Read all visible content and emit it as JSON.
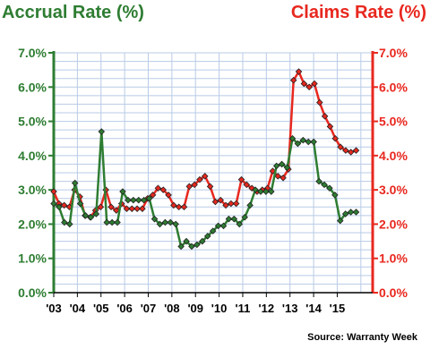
{
  "chart_data": {
    "type": "line",
    "left_axis_title": "Accrual Rate (%)",
    "right_axis_title": "Claims Rate (%)",
    "source": "Source: Warranty Week",
    "y_ticks": [
      "0.0%",
      "1.0%",
      "2.0%",
      "3.0%",
      "4.0%",
      "5.0%",
      "6.0%",
      "7.0%"
    ],
    "x_ticks": [
      "'03",
      "'04",
      "'05",
      "'06",
      "'07",
      "'08",
      "'09",
      "'10",
      "'11",
      "'12",
      "'13",
      "'14",
      "'15"
    ],
    "ylim": [
      0,
      7
    ],
    "grid": true,
    "colors": {
      "accrual": "#2e7d32",
      "claims": "#e8281f",
      "grid": "#b8cbe6"
    },
    "series": [
      {
        "axis": "left",
        "color": "#2e7d32",
        "values": [
          2.6,
          2.5,
          2.05,
          2.0,
          3.2,
          2.6,
          2.25,
          2.2,
          2.3,
          4.7,
          2.05,
          2.05,
          2.05,
          2.95,
          2.7,
          2.7,
          2.7,
          2.7,
          2.75,
          2.15,
          2.0,
          2.05,
          2.05,
          2.0,
          1.35,
          1.5,
          1.35,
          1.4,
          1.5,
          1.65,
          1.8,
          1.95,
          1.95,
          2.15,
          2.15,
          2.0,
          2.2,
          2.55,
          3.0,
          2.95,
          2.95,
          2.95,
          3.7,
          3.75,
          3.65,
          4.5,
          4.35,
          4.45,
          4.4,
          4.4,
          3.25,
          3.15,
          3.05,
          2.85,
          2.1,
          2.3,
          2.35,
          2.35
        ]
      },
      {
        "axis": "right",
        "color": "#e8281f",
        "values": [
          2.95,
          2.6,
          2.55,
          2.5,
          3.0,
          2.8,
          2.25,
          2.2,
          2.4,
          2.5,
          3.0,
          2.5,
          2.4,
          2.6,
          2.45,
          2.45,
          2.45,
          2.45,
          2.75,
          2.85,
          3.05,
          3.0,
          2.85,
          2.55,
          2.5,
          2.5,
          3.1,
          3.15,
          3.3,
          3.4,
          3.1,
          2.65,
          2.7,
          2.55,
          2.6,
          2.6,
          3.3,
          3.15,
          3.05,
          2.95,
          3.0,
          3.05,
          3.55,
          3.4,
          3.35,
          3.6,
          6.2,
          6.45,
          6.1,
          6.0,
          6.1,
          5.55,
          5.15,
          4.85,
          4.5,
          4.25,
          4.15,
          4.1,
          4.15
        ]
      }
    ]
  }
}
